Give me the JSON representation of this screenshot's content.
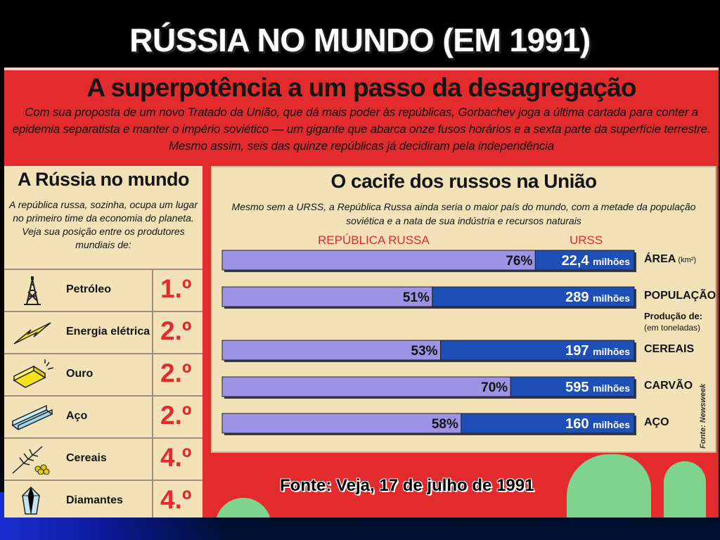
{
  "slide": {
    "title": "RÚSSIA NO MUNDO (EM 1991)",
    "source_note": "Fonte: Veja, 17 de julho de 1991",
    "source_dot": "."
  },
  "poster": {
    "headline": "A superpotência a um passo da desagregação",
    "lede": "Com sua proposta de um novo Tratado da União, que dá mais poder às repúblicas, Gorbachev joga a última cartada para conter a epidemia separatista e manter o império soviético — um gigante que abarca onze fusos horários e a sexta parte da superfície terrestre. Mesmo assim, seis das quinze repúblicas já decidiram pela independência",
    "credit": "Fonte: Newsweek"
  },
  "left_panel": {
    "title": "A Rússia no mundo",
    "text": "A república russa, sozinha, ocupa um lugar no primeiro time da economia do planeta. Veja sua posição entre os produtores mundiais de:",
    "rows": [
      {
        "label": "Petróleo",
        "rank": "1.º",
        "icon": "oil-derrick-icon"
      },
      {
        "label": "Energia elétrica",
        "rank": "2.º",
        "icon": "lightning-bolt-icon"
      },
      {
        "label": "Ouro",
        "rank": "2.º",
        "icon": "gold-bar-icon"
      },
      {
        "label": "Aço",
        "rank": "2.º",
        "icon": "steel-beam-icon"
      },
      {
        "label": "Cereais",
        "rank": "4.º",
        "icon": "wheat-icon"
      },
      {
        "label": "Diamantes",
        "rank": "4.º",
        "icon": "diamond-icon"
      }
    ]
  },
  "right_panel": {
    "title": "O cacife dos russos na União",
    "text": "Mesmo sem a URSS, a República Russa ainda seria o maior país do mundo, com a metade da população soviética e a nata de sua indústria e recursos naturais",
    "col_left": "REPÚBLICA RUSSA",
    "col_right": "URSS",
    "production_label": "Produção de:",
    "production_sub": "(em toneladas)"
  },
  "colors": {
    "poster_red": "#e32a2c",
    "panel_cream": "#f3e1b8",
    "bar_russia": "#9c93e6",
    "bar_ussr": "#1d4fb7"
  },
  "chart_data": {
    "type": "bar",
    "title": "O cacife dos russos na União",
    "series": [
      {
        "name": "REPÚBLICA RUSSA",
        "values": [
          76,
          51,
          53,
          70,
          58
        ]
      },
      {
        "name": "URSS",
        "values": [
          "22,4",
          "289",
          "197",
          "595",
          "160"
        ]
      }
    ],
    "categories": [
      "ÁREA",
      "POPULAÇÃO",
      "CEREAIS",
      "CARVÃO",
      "AÇO"
    ],
    "category_units": [
      "(km²)",
      "",
      "",
      "",
      ""
    ],
    "russia_share_percent": [
      76,
      51,
      53,
      70,
      58
    ],
    "russia_share_labels": [
      "76%",
      "51%",
      "53%",
      "70%",
      "58%"
    ],
    "ussr_totals": [
      "22,4",
      "289",
      "197",
      "595",
      "160"
    ],
    "ussr_unit": "milhões",
    "xlim": [
      0,
      100
    ],
    "grid": false
  }
}
